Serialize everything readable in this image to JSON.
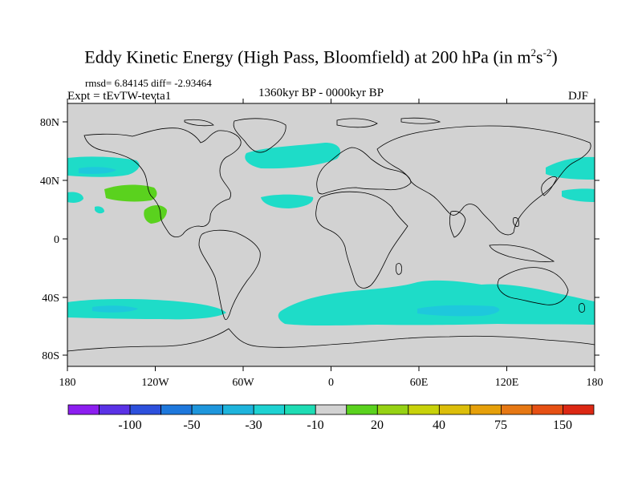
{
  "title": {
    "main": "Eddy Kinetic Energy (High Pass, Bloomfield) at 200 hPa (in m",
    "unit_sup1": "2",
    "unit_mid": "s",
    "unit_sup2": "-2",
    "close": ")"
  },
  "stats": "rmsd= 6.84145 diff= -2.93464",
  "experiment": "Expt = tEvTW-tevta1",
  "period": "1360kyr BP - 0000kyr BP",
  "season": "DJF",
  "lat_labels": [
    "80N",
    "40N",
    "0",
    "40S",
    "80S"
  ],
  "lon_labels": [
    "180",
    "120W",
    "60W",
    "0",
    "60E",
    "120E",
    "180"
  ],
  "colorbar": {
    "colors": [
      "#8c1ef0",
      "#5a32e6",
      "#2d50dc",
      "#1e78dc",
      "#1e96dc",
      "#1eb4dc",
      "#1ed2d2",
      "#1edcb4",
      "#d2d2d2",
      "#5ad21e",
      "#96d214",
      "#c8d20a",
      "#dcbe0a",
      "#e6a00a",
      "#e67814",
      "#e65014",
      "#dc2814"
    ],
    "labels": [
      "-100",
      "-50",
      "-30",
      "-10",
      "20",
      "40",
      "75",
      "150"
    ]
  },
  "colors": {
    "land_ocean_bg": "#d2d2d2",
    "negative_small": "#1edcc8",
    "negative_mid": "#1ec8dc",
    "positive_small": "#5ad21e",
    "coastline": "#000000"
  }
}
